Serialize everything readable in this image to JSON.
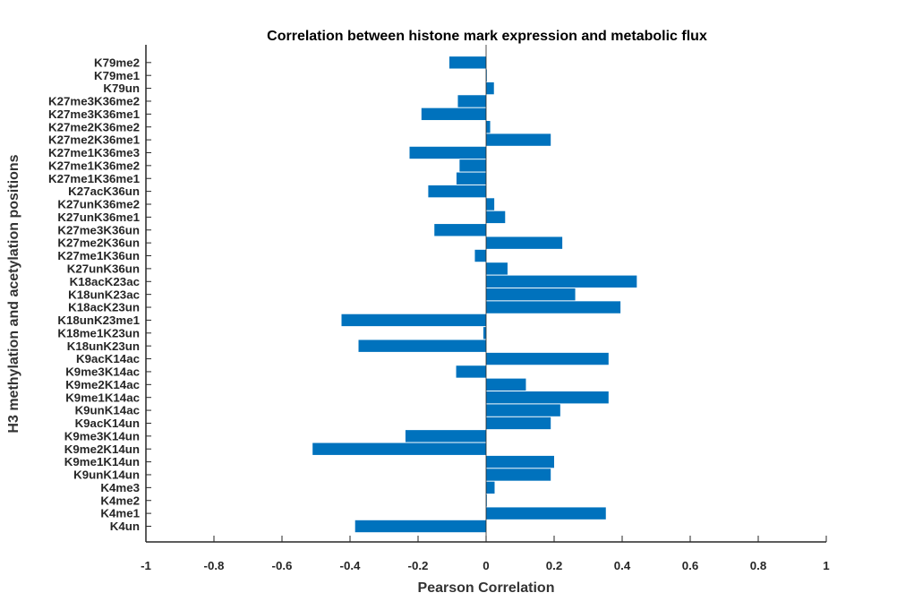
{
  "chart_data": {
    "type": "bar",
    "orientation": "horizontal",
    "title": "Correlation between histone mark expression and metabolic flux",
    "xlabel": "Pearson Correlation",
    "ylabel": "H3 methylation and acetylation positions",
    "xlim": [
      -1,
      1
    ],
    "xticks": [
      "-1",
      "-0.8",
      "-0.6",
      "-0.4",
      "-0.2",
      "0",
      "0.2",
      "0.4",
      "0.6",
      "0.8",
      "1"
    ],
    "grid": false,
    "bar_color": "#0072BD",
    "categories": [
      "K4un",
      "K4me1",
      "K4me2",
      "K4me3",
      "K9unK14un",
      "K9me1K14un",
      "K9me2K14un",
      "K9me3K14un",
      "K9acK14un",
      "K9unK14ac",
      "K9me1K14ac",
      "K9me2K14ac",
      "K9me3K14ac",
      "K9acK14ac",
      "K18unK23un",
      "K18me1K23un",
      "K18unK23me1",
      "K18acK23un",
      "K18unK23ac",
      "K18acK23ac",
      "K27unK36un",
      "K27me1K36un",
      "K27me2K36un",
      "K27me3K36un",
      "K27unK36me1",
      "K27unK36me2",
      "K27acK36un",
      "K27me1K36me1",
      "K27me1K36me2",
      "K27me1K36me3",
      "K27me2K36me1",
      "K27me2K36me2",
      "K27me3K36me1",
      "K27me3K36me2",
      "K79un",
      "K79me1",
      "K79me2"
    ],
    "values": [
      -0.385,
      0.352,
      0.0,
      0.025,
      0.19,
      0.2,
      -0.51,
      -0.237,
      0.19,
      0.218,
      0.36,
      0.117,
      -0.088,
      0.36,
      -0.375,
      -0.008,
      -0.425,
      0.395,
      0.262,
      0.443,
      0.063,
      -0.033,
      0.224,
      -0.152,
      0.056,
      0.024,
      -0.17,
      -0.087,
      -0.078,
      -0.225,
      0.19,
      0.012,
      -0.19,
      -0.083,
      0.023,
      0.002,
      -0.108
    ]
  }
}
